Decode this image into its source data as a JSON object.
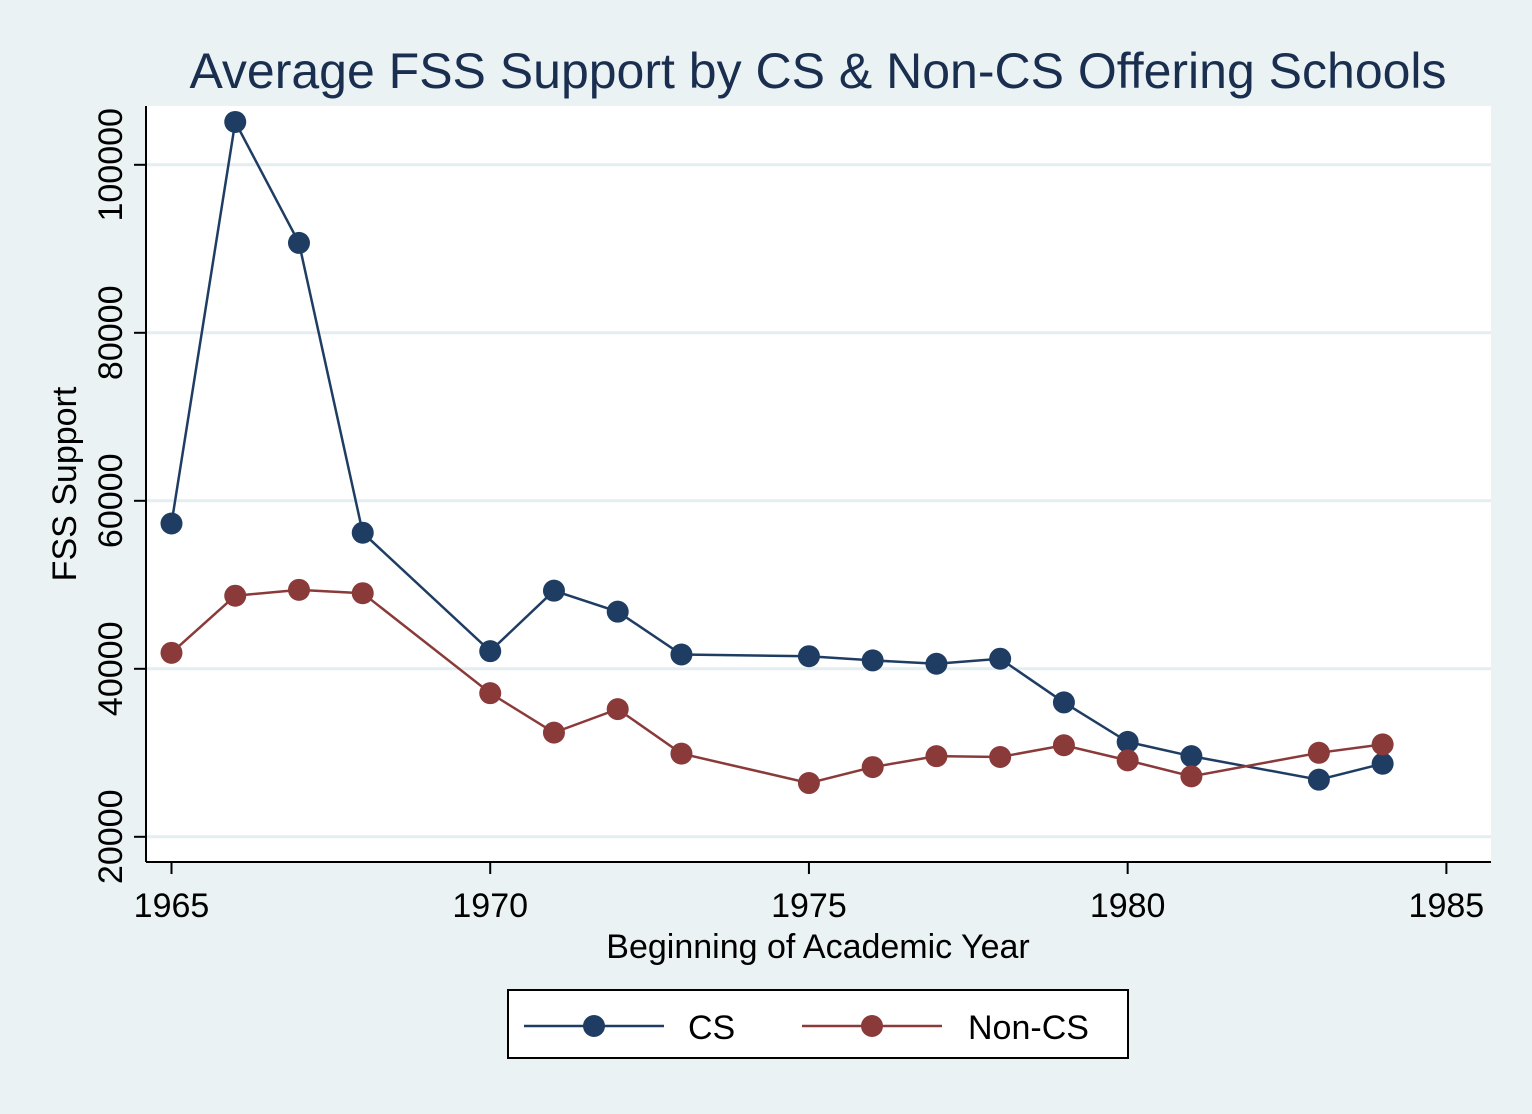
{
  "chart_data": {
    "type": "line",
    "title": "Average FSS Support by CS & Non-CS Offering Schools",
    "xlabel": "Beginning of Academic Year",
    "ylabel": "FSS Support",
    "xlim": [
      1964.6,
      1985.7
    ],
    "ylim": [
      17000,
      107000
    ],
    "xticks": [
      1965,
      1970,
      1975,
      1980,
      1985
    ],
    "yticks": [
      20000,
      40000,
      60000,
      80000,
      100000
    ],
    "x_tick_labels": [
      "1965",
      "1970",
      "1975",
      "1980",
      "1985"
    ],
    "y_tick_labels": [
      "20000",
      "40000",
      "60000",
      "80000",
      "100000"
    ],
    "grid": "horizontal",
    "legend_position": "bottom",
    "series": [
      {
        "name": "CS",
        "color": "#1f3d63",
        "x": [
          1965,
          1966,
          1967,
          1968,
          1970,
          1971,
          1972,
          1973,
          1975,
          1976,
          1977,
          1978,
          1979,
          1980,
          1981,
          1983,
          1984
        ],
        "y": [
          57300,
          105100,
          90700,
          56200,
          42100,
          49300,
          46800,
          41700,
          41500,
          41000,
          40600,
          41200,
          36000,
          31300,
          29600,
          26800,
          28700
        ]
      },
      {
        "name": "Non-CS",
        "color": "#8b3a3a",
        "x": [
          1965,
          1966,
          1967,
          1968,
          1970,
          1971,
          1972,
          1973,
          1975,
          1976,
          1977,
          1978,
          1979,
          1980,
          1981,
          1983,
          1984
        ],
        "y": [
          41900,
          48700,
          49400,
          49000,
          37100,
          32400,
          35200,
          29900,
          26400,
          28300,
          29600,
          29500,
          30900,
          29100,
          27200,
          30000,
          31000
        ]
      }
    ]
  }
}
